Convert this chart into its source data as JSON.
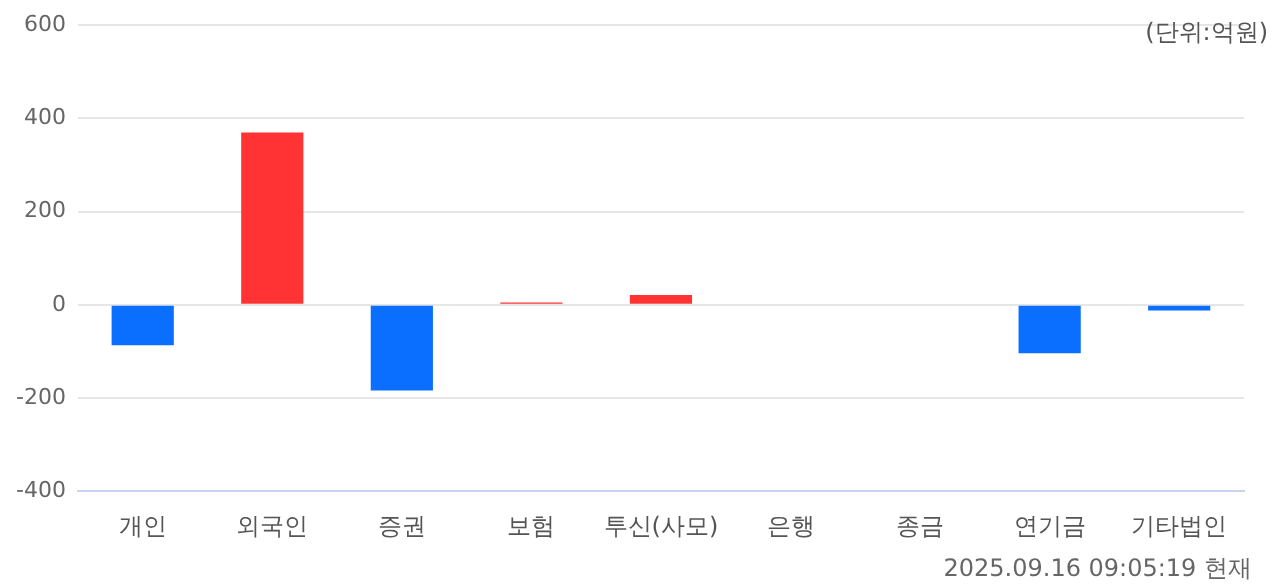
{
  "chart_data": {
    "type": "bar",
    "categories": [
      "개인",
      "외국인",
      "증권",
      "보험",
      "투신(사모)",
      "은행",
      "종금",
      "연기금",
      "기타법인"
    ],
    "values": [
      -87,
      370,
      -184,
      5,
      21,
      0,
      0,
      -104,
      -12
    ],
    "colors": [
      "#0a6fff",
      "#ff3333",
      "#0a6fff",
      "#ff3333",
      "#ff3333",
      "#0a6fff",
      "#0a6fff",
      "#0a6fff",
      "#0a6fff"
    ],
    "ylim": [
      -400,
      600
    ],
    "yticks": [
      -400,
      -200,
      0,
      200,
      400,
      600
    ],
    "grid": "y",
    "legend": false,
    "annotations": [
      "(단위:억원)",
      "2025.09.16 09:05:19 현재"
    ]
  }
}
